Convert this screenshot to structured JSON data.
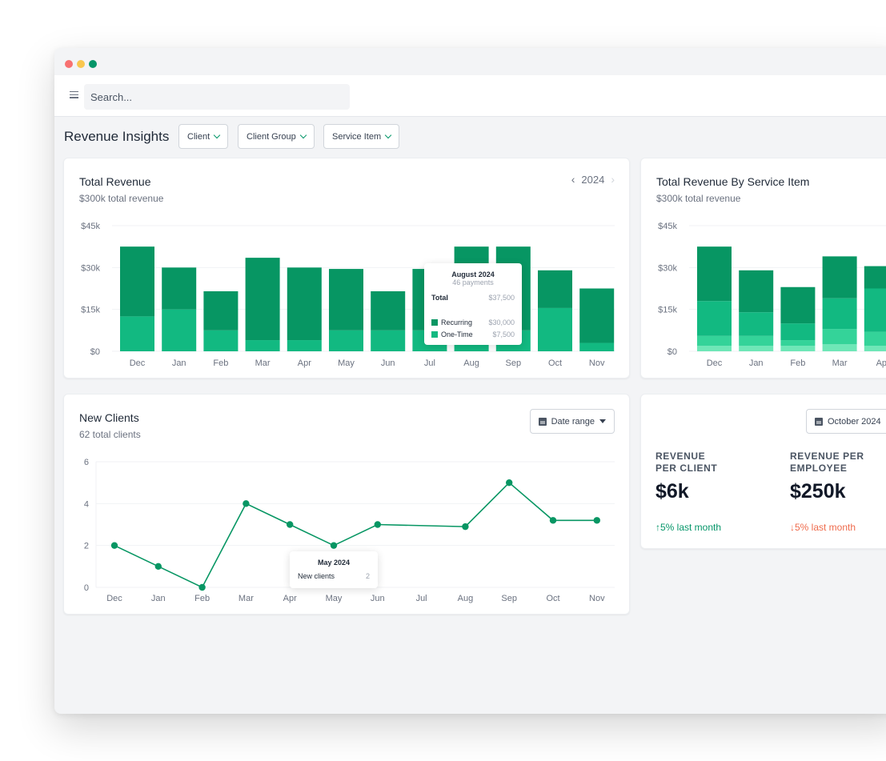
{
  "window": {
    "controls": [
      "close",
      "minimize",
      "maximize"
    ]
  },
  "toolbar": {
    "menu_icon": "hamburger-icon",
    "search_placeholder": "Search..."
  },
  "page": {
    "title": "Revenue Insights",
    "filters": [
      "Client",
      "Client Group",
      "Service Item"
    ]
  },
  "colors": {
    "dark_green": "#079663",
    "light_green": "#12b981",
    "mint": "#34d399",
    "pale_green": "#6ee7b7",
    "up": "#059669",
    "down": "#ef6b4c"
  },
  "total_revenue": {
    "title": "Total Revenue",
    "subtitle": "$300k total revenue",
    "year": "2024",
    "prev_icon": "chevron-left-icon",
    "next_icon": "chevron-right-icon",
    "tooltip": {
      "title": "August 2024",
      "payments": "46 payments",
      "total_label": "Total",
      "total_value": "$37,500",
      "rows": [
        {
          "label": "Recurring",
          "value": "$30,000"
        },
        {
          "label": "One-Time",
          "value": "$7,500"
        }
      ]
    }
  },
  "service_item": {
    "title": "Total Revenue By Service Item",
    "subtitle": "$300k total revenue"
  },
  "new_clients": {
    "title": "New Clients",
    "subtitle": "62 total clients",
    "date_range_label": "Date range",
    "tooltip": {
      "title": "May 2024",
      "label": "New clients",
      "value": "2"
    }
  },
  "metrics": {
    "month_label": "October 2024",
    "items": [
      {
        "label_line1": "REVENUE",
        "label_line2": "PER CLIENT",
        "value": "$6k",
        "delta": "5% last month",
        "direction": "up"
      },
      {
        "label_line1": "REVENUE PER",
        "label_line2": "EMPLOYEE",
        "value": "$250k",
        "delta": "5% last month",
        "direction": "down"
      }
    ]
  },
  "chart_data": [
    {
      "type": "bar",
      "title": "Total Revenue",
      "stacked": true,
      "categories": [
        "Dec",
        "Jan",
        "Feb",
        "Mar",
        "Apr",
        "May",
        "Jun",
        "Jul",
        "Aug",
        "Sep",
        "Oct",
        "Nov"
      ],
      "yticks": [
        "$0",
        "$15k",
        "$30k",
        "$45k"
      ],
      "ylim": [
        0,
        45000
      ],
      "series": [
        {
          "name": "One-Time",
          "values": [
            12500,
            15000,
            7500,
            4000,
            4000,
            7500,
            7500,
            7500,
            7500,
            7500,
            15500,
            3000
          ]
        },
        {
          "name": "Recurring",
          "values": [
            25000,
            15000,
            14000,
            29500,
            26000,
            22000,
            14000,
            22000,
            30000,
            30000,
            13500,
            19500
          ]
        }
      ],
      "grid": true
    },
    {
      "type": "bar",
      "title": "Total Revenue By Service Item",
      "stacked": true,
      "categories": [
        "Dec",
        "Jan",
        "Feb",
        "Mar",
        "Ap"
      ],
      "yticks": [
        "$0",
        "$15k",
        "$30k",
        "$45k"
      ],
      "ylim": [
        0,
        45000
      ],
      "series": [
        {
          "values": [
            2000,
            2000,
            2000,
            2500,
            2000
          ]
        },
        {
          "values": [
            3500,
            3500,
            2000,
            5500,
            5000
          ]
        },
        {
          "values": [
            12500,
            8500,
            6000,
            11000,
            15500
          ]
        },
        {
          "values": [
            19500,
            15000,
            13000,
            15000,
            8000
          ]
        }
      ],
      "grid": true
    },
    {
      "type": "line",
      "title": "New Clients",
      "x": [
        "Dec",
        "Jan",
        "Feb",
        "Mar",
        "Apr",
        "May",
        "Jun",
        "Jul",
        "Aug",
        "Sep",
        "Oct",
        "Nov"
      ],
      "series": [
        {
          "points": [
            [
              "Dec",
              2
            ],
            [
              "Jan",
              1
            ],
            [
              "Feb",
              0
            ],
            [
              "Mar",
              4
            ],
            [
              "Apr",
              3
            ],
            [
              "May",
              2
            ],
            [
              "Jun",
              3
            ],
            [
              "Aug",
              2.9
            ],
            [
              "Sep",
              5
            ],
            [
              "Oct",
              3.2
            ],
            [
              "Nov",
              3.2
            ]
          ]
        }
      ],
      "yticks": [
        "0",
        "2",
        "4",
        "6"
      ],
      "ylim": [
        0,
        6
      ],
      "grid": true
    }
  ]
}
